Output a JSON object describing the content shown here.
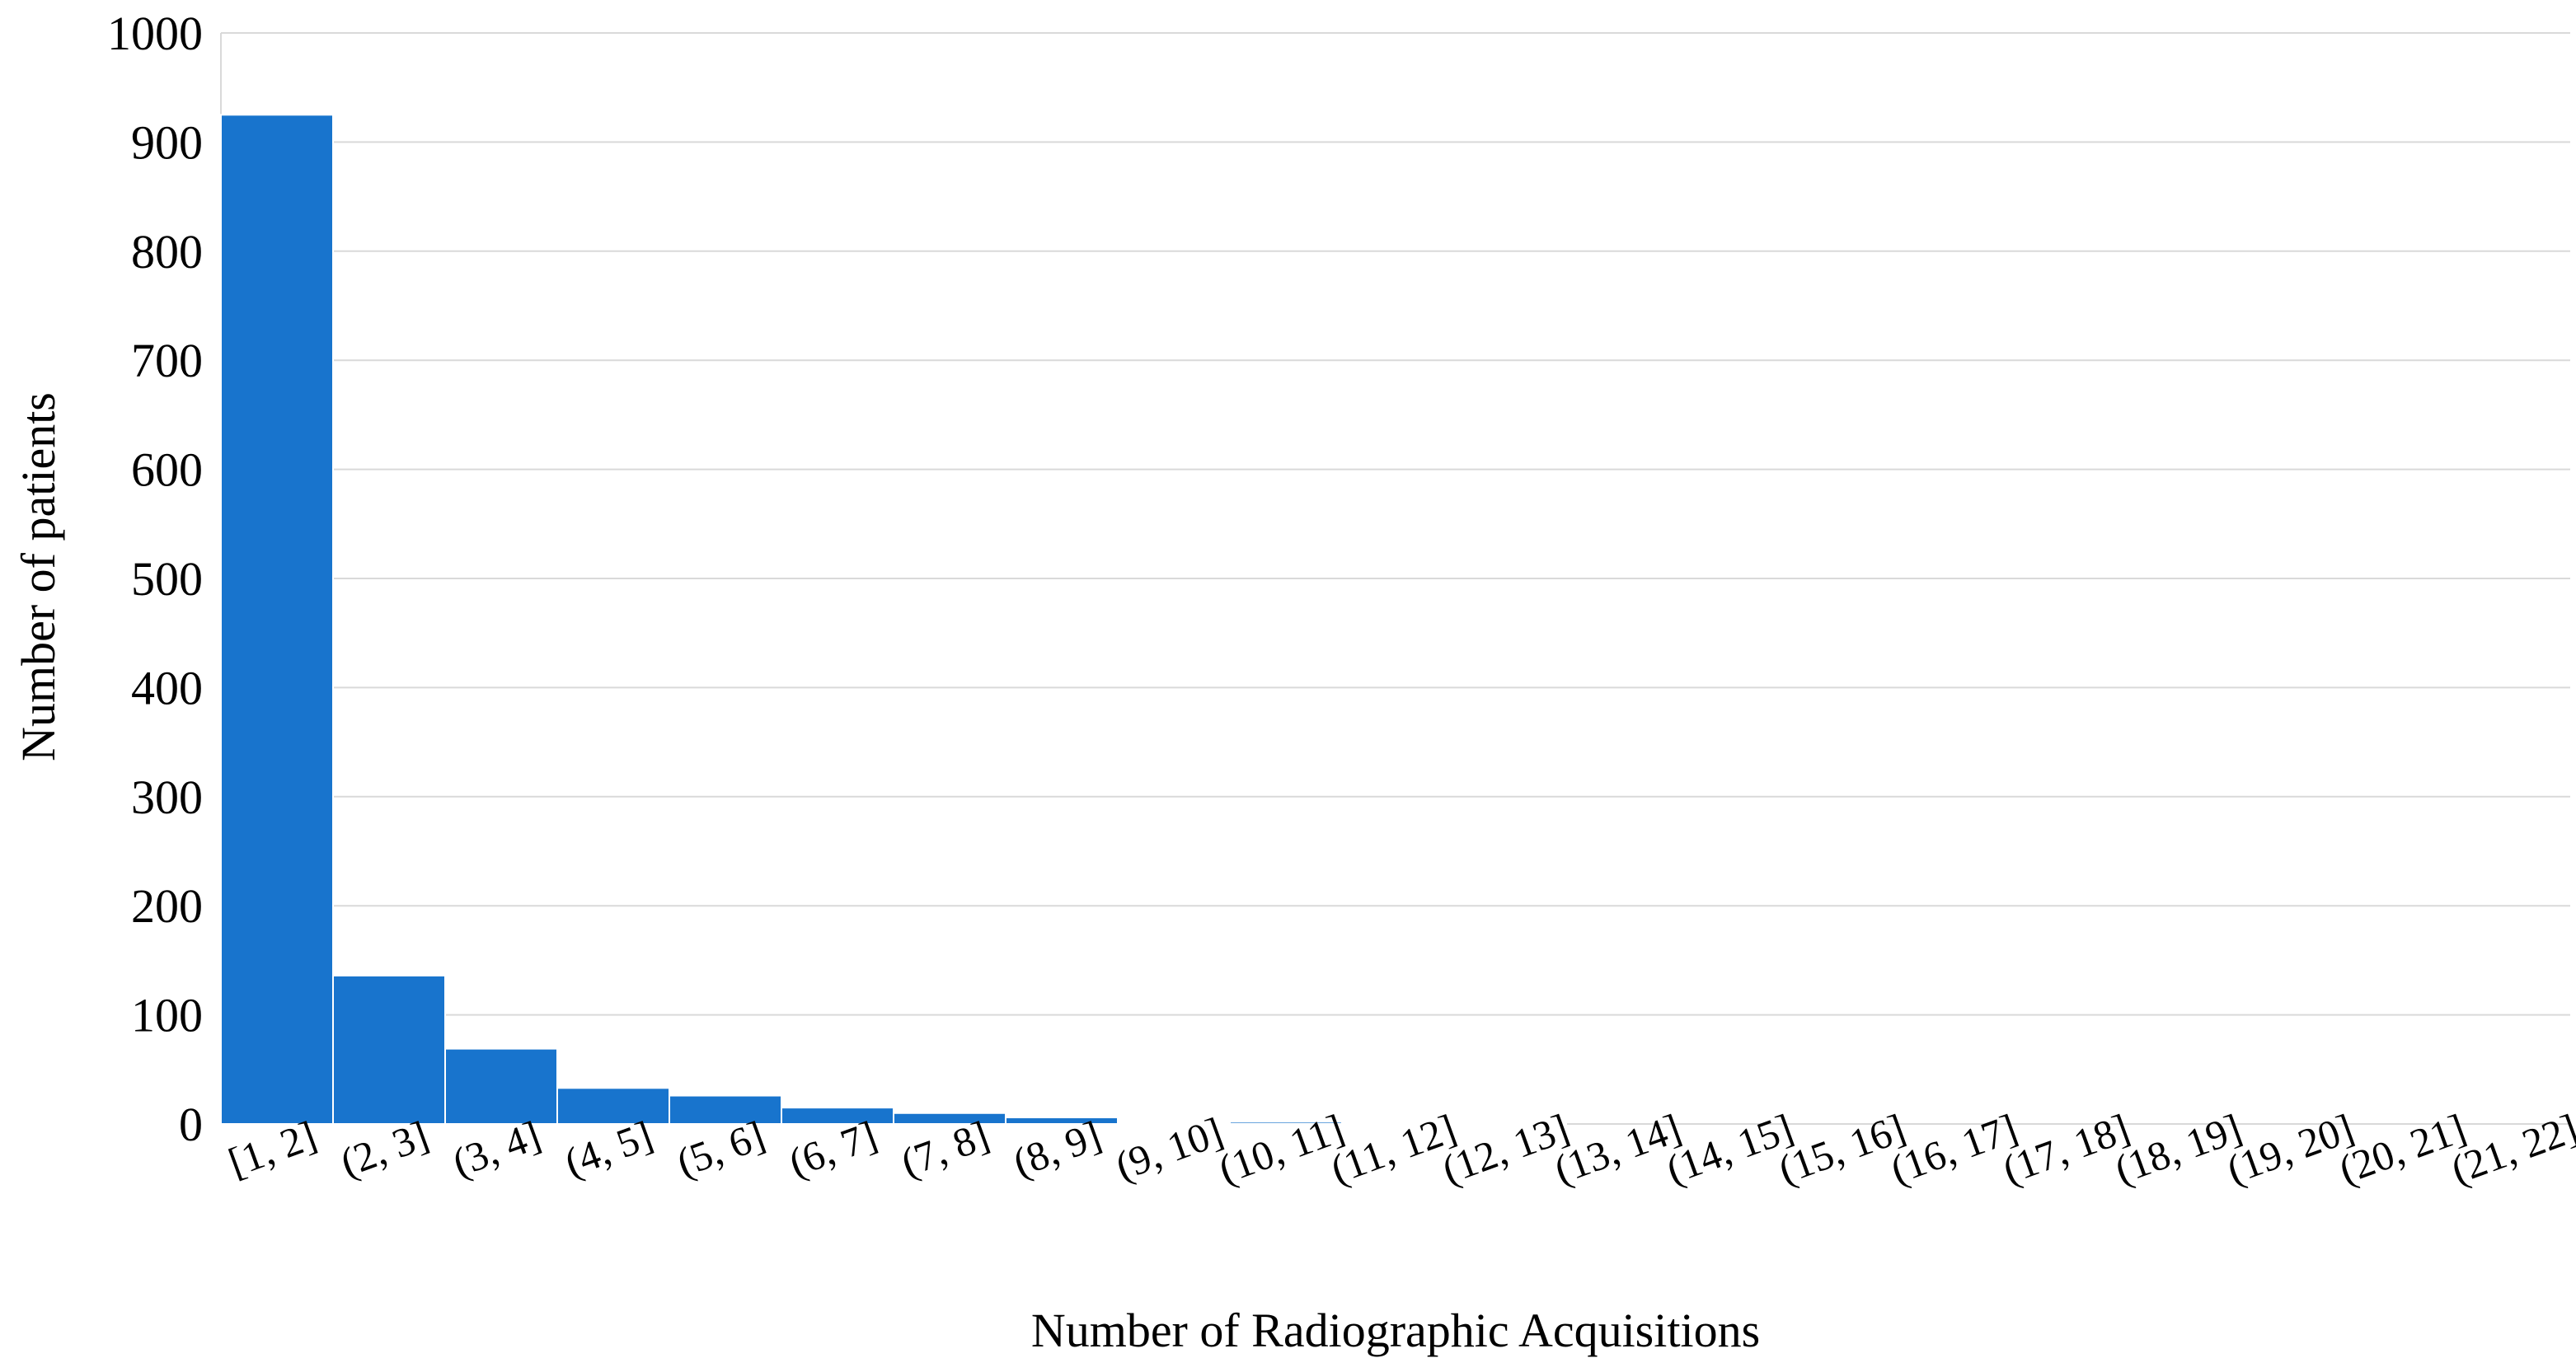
{
  "chart_data": {
    "type": "bar",
    "title": "",
    "xlabel": "Number of Radiographic Acquisitions",
    "ylabel": "Number of patients",
    "ylim": [
      0,
      1000
    ],
    "yticks": [
      "0",
      "100",
      "200",
      "300",
      "400",
      "500",
      "600",
      "700",
      "800",
      "900",
      "1000"
    ],
    "grid": true,
    "legend": "none",
    "bar_color": "#1874CD",
    "categories": [
      "[1, 2]",
      "(2, 3]",
      "(3, 4]",
      "(4, 5]",
      "(5, 6]",
      "(6, 7]",
      "(7, 8]",
      "(8, 9]",
      "(9, 10]",
      "(10, 11]",
      "(11, 12]",
      "(12, 13]",
      "(13, 14]",
      "(14, 15]",
      "(15, 16]",
      "(16, 17]",
      "(17, 18]",
      "(18, 19]",
      "(19, 20]",
      "(20, 21]",
      "(21, 22]"
    ],
    "values": [
      925,
      136,
      69,
      33,
      26,
      15,
      10,
      6,
      1,
      2,
      1,
      1,
      0,
      0,
      0,
      0,
      0,
      0,
      0,
      0,
      0
    ]
  }
}
